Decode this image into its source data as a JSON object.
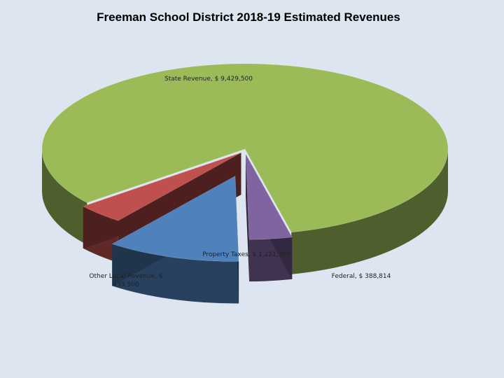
{
  "chart_data": {
    "type": "pie",
    "title": "Freeman School District 2018-19 Estimated Revenues",
    "slices": [
      {
        "name": "State Revenue",
        "value": 9429500,
        "label": "State Revenue, $ 9,429,500",
        "color": "#9bbb59"
      },
      {
        "name": "Federal",
        "value": 388814,
        "label": "Federal, $ 388,814",
        "color": "#8064a2"
      },
      {
        "name": "Property Taxes",
        "value": 1221388,
        "label": "Property Taxes, $ 1,221,388",
        "color": "#4f81bd"
      },
      {
        "name": "Other Local Revenue",
        "value": 439500,
        "label_lines": [
          "Other Local Revenue, $",
          "439,500"
        ],
        "color": "#c0504d"
      }
    ],
    "style": "3d exploded"
  }
}
